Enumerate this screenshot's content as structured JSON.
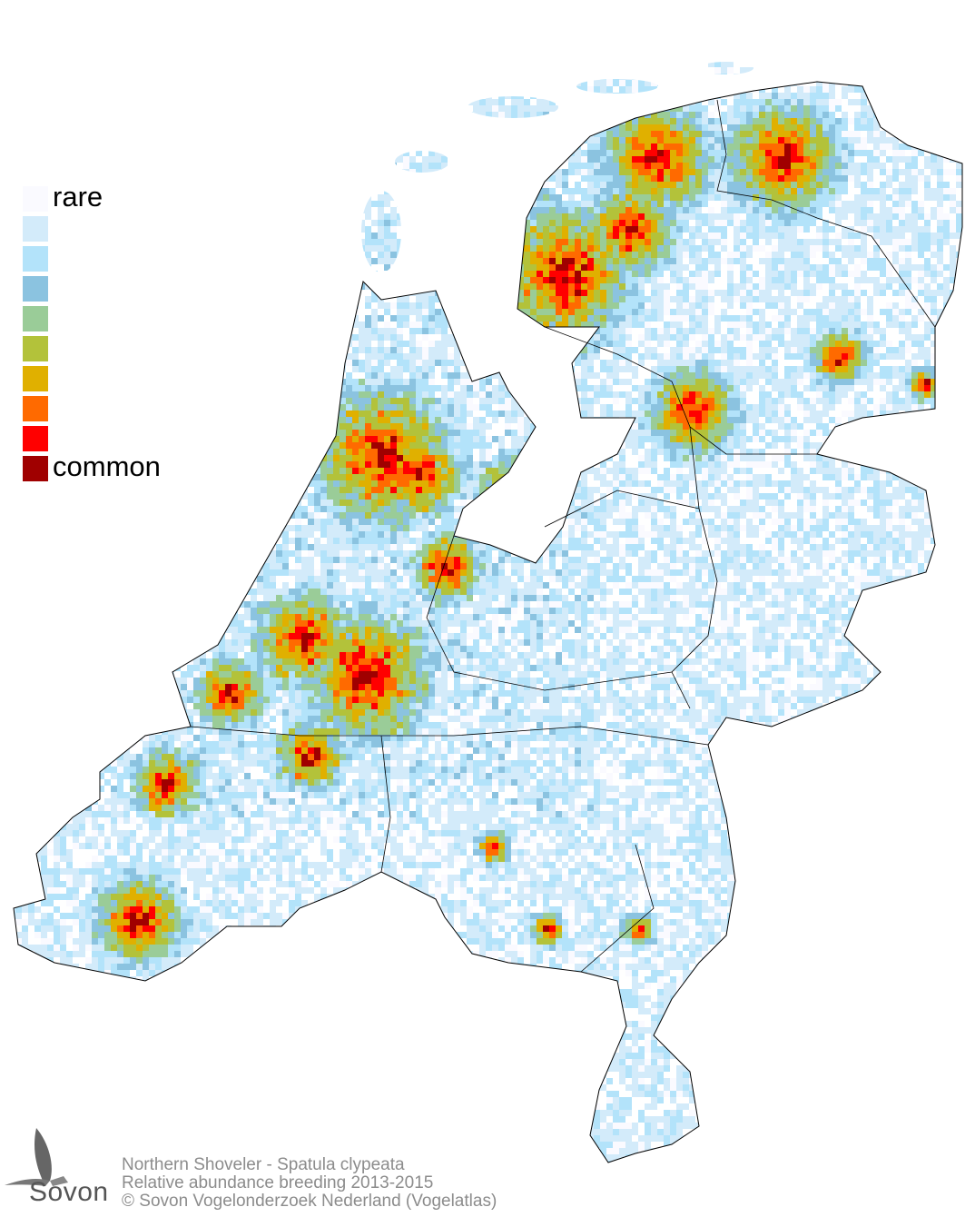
{
  "legend": {
    "rare_label": "rare",
    "common_label": "common",
    "colors": [
      "#fafaff",
      "#d3ebfa",
      "#b3e3fa",
      "#8bc3e0",
      "#9acc98",
      "#b3c23a",
      "#e0b000",
      "#ff6a00",
      "#ff0000",
      "#a00000"
    ]
  },
  "credits": {
    "species": "Northern Shoveler - Spatula clypeata",
    "subtitle": "Relative abundance breeding 2013-2015",
    "copyright": "© Sovon Vogelonderzoek Nederland (Vogelatlas)"
  },
  "logo": {
    "text": "Sovon",
    "icon": "swallow-icon"
  }
}
